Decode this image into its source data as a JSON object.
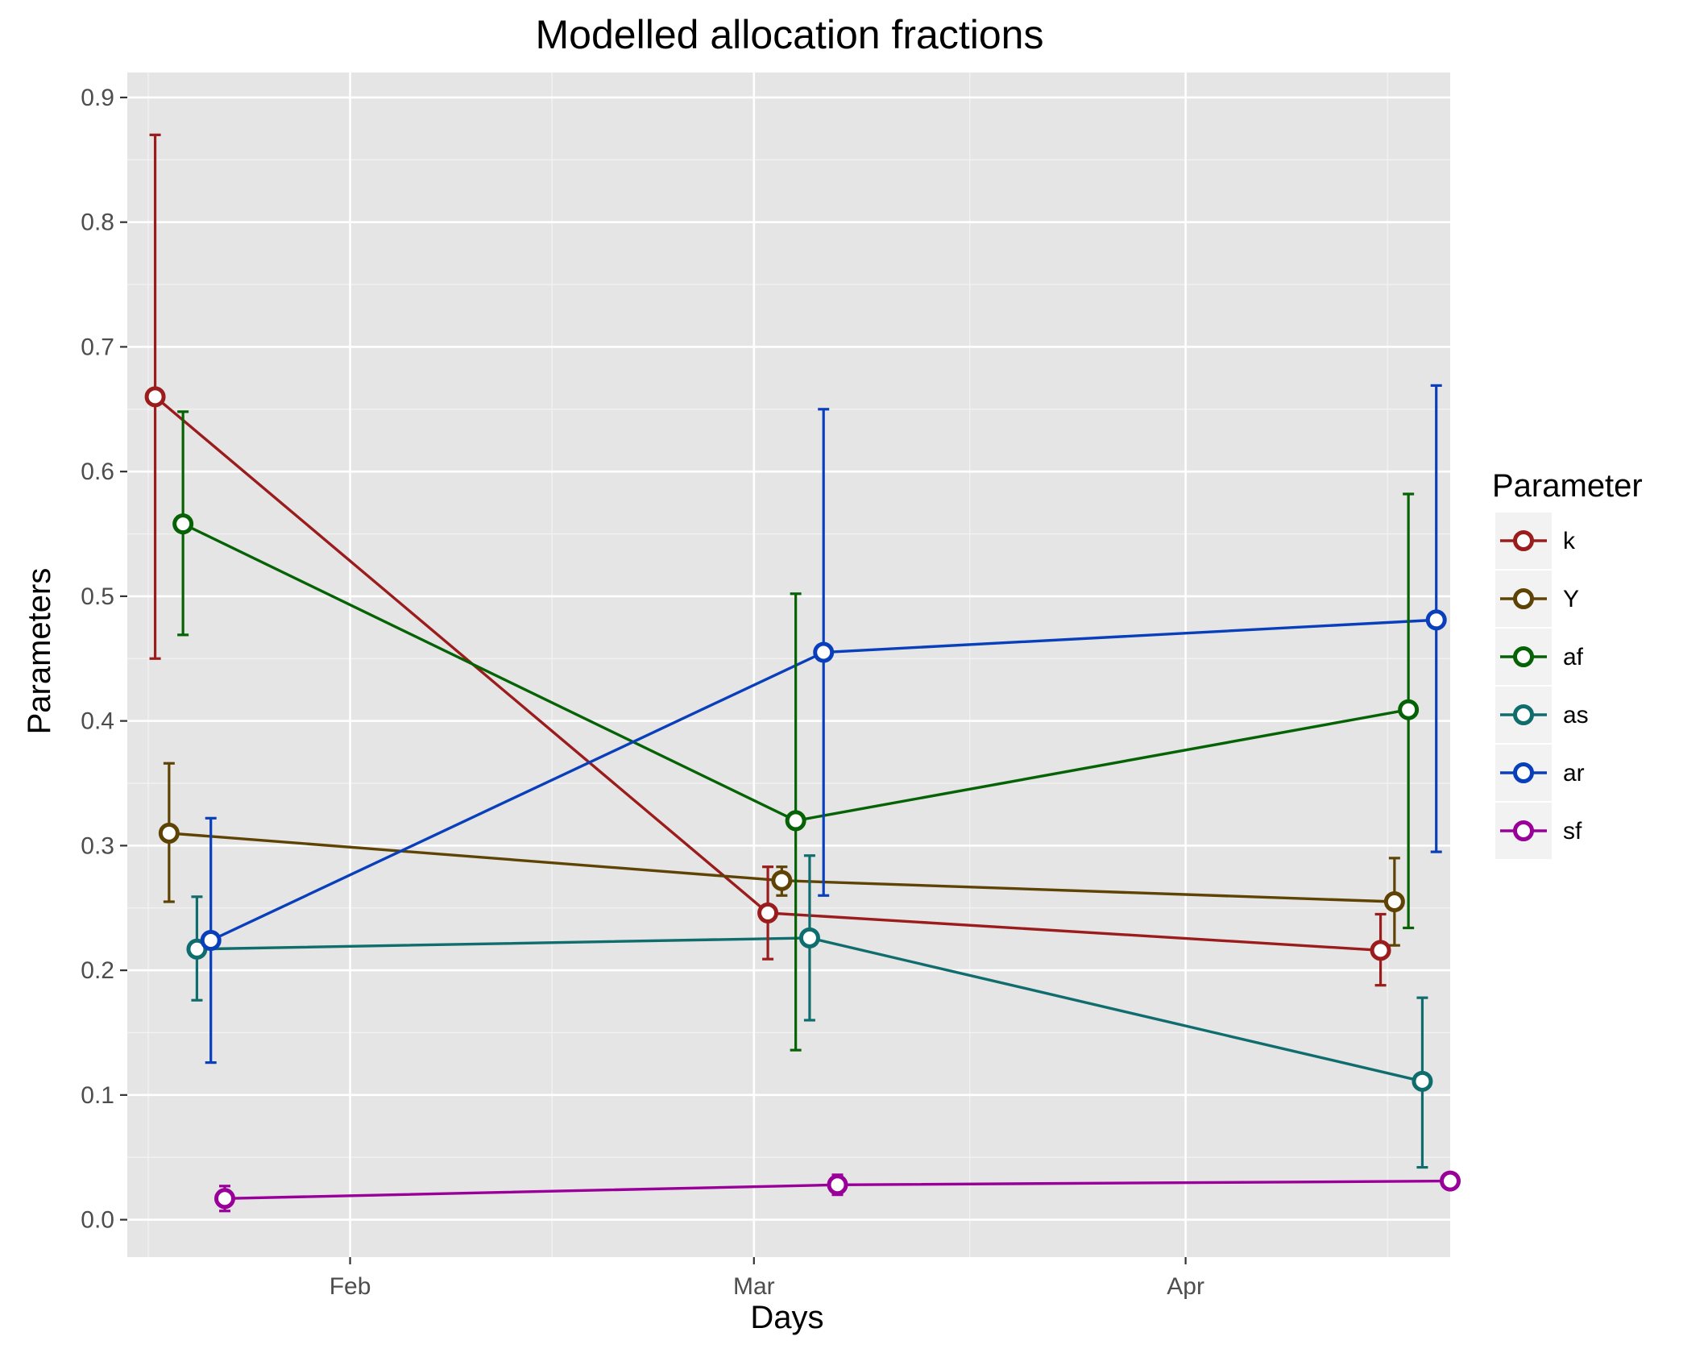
{
  "chart_data": {
    "type": "line",
    "title": "Modelled allocation fractions",
    "xlabel": "Days",
    "ylabel": "Parameters",
    "ylim": [
      -0.03,
      0.92
    ],
    "xlim": [
      "2012-01-16",
      "2012-04-20"
    ],
    "y_ticks": [
      "0.0",
      "0.1",
      "0.2",
      "0.3",
      "0.4",
      "0.5",
      "0.6",
      "0.7",
      "0.8",
      "0.9"
    ],
    "x_ticks": [
      {
        "label": "Feb",
        "date": "2012-02-01"
      },
      {
        "label": "Mar",
        "date": "2012-03-01"
      },
      {
        "label": "Apr",
        "date": "2012-04-01"
      }
    ],
    "grid": true,
    "background": "#e5e5e5",
    "legend": {
      "title": "Parameter",
      "placement": "right"
    },
    "series": [
      {
        "name": "k",
        "color": "#9b1c1c",
        "x": [
          "2012-01-18",
          "2012-03-02",
          "2012-04-15"
        ],
        "y": [
          0.66,
          0.246,
          0.216
        ],
        "ymin": [
          0.45,
          0.209,
          0.188
        ],
        "ymax": [
          0.87,
          0.283,
          0.245
        ]
      },
      {
        "name": "Y",
        "color": "#5e4304",
        "x": [
          "2012-01-19",
          "2012-03-03",
          "2012-04-16"
        ],
        "y": [
          0.31,
          0.272,
          0.255
        ],
        "ymin": [
          0.255,
          0.26,
          0.22
        ],
        "ymax": [
          0.366,
          0.283,
          0.29
        ]
      },
      {
        "name": "af",
        "color": "#056205",
        "x": [
          "2012-01-20",
          "2012-03-04",
          "2012-04-17"
        ],
        "y": [
          0.558,
          0.32,
          0.409
        ],
        "ymin": [
          0.469,
          0.136,
          0.234
        ],
        "ymax": [
          0.648,
          0.502,
          0.582
        ]
      },
      {
        "name": "as",
        "color": "#106d6d",
        "x": [
          "2012-01-21",
          "2012-03-05",
          "2012-04-18"
        ],
        "y": [
          0.217,
          0.226,
          0.111
        ],
        "ymin": [
          0.176,
          0.16,
          0.042
        ],
        "ymax": [
          0.259,
          0.292,
          0.178
        ]
      },
      {
        "name": "ar",
        "color": "#0a3fbc",
        "x": [
          "2012-01-22",
          "2012-03-06",
          "2012-04-19"
        ],
        "y": [
          0.224,
          0.455,
          0.481
        ],
        "ymin": [
          0.126,
          0.26,
          0.295
        ],
        "ymax": [
          0.322,
          0.65,
          0.669
        ]
      },
      {
        "name": "sf",
        "color": "#990099",
        "x": [
          "2012-01-23",
          "2012-03-07",
          "2012-04-20"
        ],
        "y": [
          0.017,
          0.028,
          0.031
        ],
        "ymin": [
          0.007,
          0.02,
          0.025
        ],
        "ymax": [
          0.027,
          0.036,
          0.037
        ]
      }
    ]
  }
}
